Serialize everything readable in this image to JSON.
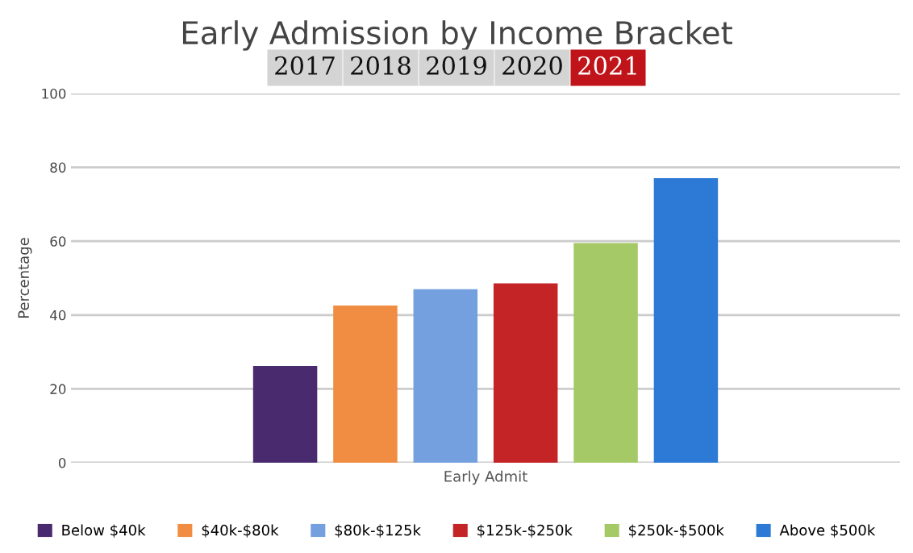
{
  "chart_data": {
    "type": "bar",
    "title": "Early Admission by Income Bracket",
    "annotations": [
      "2017",
      "2018",
      "2019",
      "2020",
      "2021"
    ],
    "categories": [
      "Early Admit"
    ],
    "series": [
      {
        "name": "Below $40k",
        "color": "#4a2a6e",
        "values": [
          26.2
        ]
      },
      {
        "name": "$40k-$80k",
        "color": "#f08d42",
        "values": [
          42.6
        ]
      },
      {
        "name": "$80k-$125k",
        "color": "#74a0e0",
        "values": [
          47.0
        ]
      },
      {
        "name": "$125k-$250k",
        "color": "#c52427",
        "values": [
          48.6
        ]
      },
      {
        "name": "$250k-$500k",
        "color": "#a4c966",
        "values": [
          59.5
        ]
      },
      {
        "name": "Above $500k",
        "color": "#2d7ad6",
        "values": [
          77.1
        ]
      }
    ],
    "ylabel": "Percentage",
    "ylim": [
      0,
      100
    ],
    "yticks": [
      0,
      20,
      40,
      60,
      80,
      100
    ],
    "grid": "y",
    "legend": "bottom"
  }
}
